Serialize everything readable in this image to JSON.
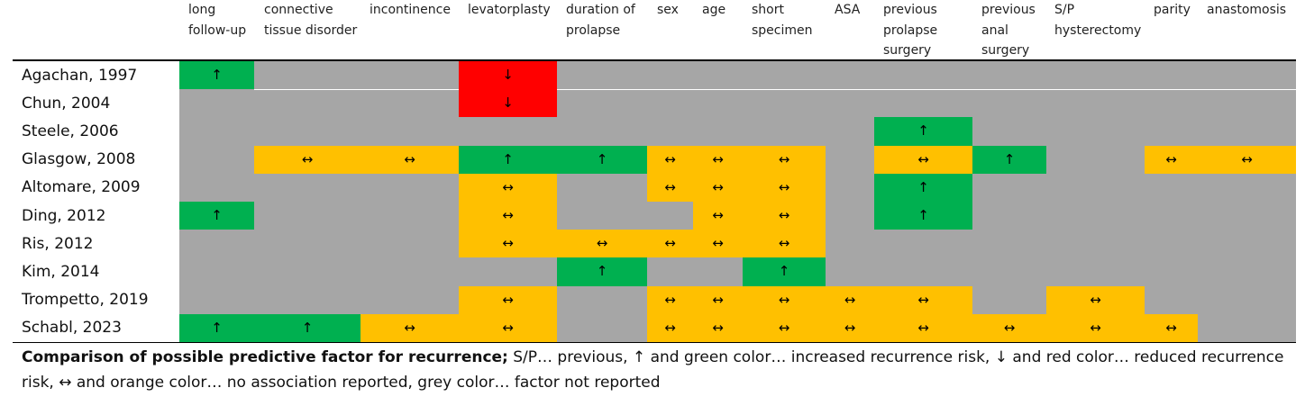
{
  "colors": {
    "increased": "#00b050",
    "reduced": "#ff0000",
    "no_association": "#ffc000",
    "not_reported": "#a6a6a6"
  },
  "symbols": {
    "up": "↑",
    "down": "↓",
    "both": "↔",
    "none": ""
  },
  "columns": [
    "long\nfollow-up",
    "connective\ntissue disorder",
    "incontinence",
    "levatorplasty",
    "duration of\nprolapse",
    "sex",
    "age",
    "short\nspecimen",
    "ASA",
    "previous\nprolapse\nsurgery",
    "previous\nanal\nsurgery",
    "S/P\nhysterectomy",
    "parity",
    "anastomosis"
  ],
  "rows": [
    {
      "study": "Agachan, 1997",
      "cells": [
        "up",
        "none",
        "none",
        "down",
        "none",
        "none",
        "none",
        "none",
        "none",
        "none",
        "none",
        "none",
        "none",
        "none"
      ]
    },
    {
      "study": "Chun, 2004",
      "cells": [
        "none",
        "none",
        "none",
        "down",
        "none",
        "none",
        "none",
        "none",
        "none",
        "none",
        "none",
        "none",
        "none",
        "none"
      ]
    },
    {
      "study": "Steele, 2006",
      "cells": [
        "none",
        "none",
        "none",
        "none",
        "none",
        "none",
        "none",
        "none",
        "none",
        "up",
        "none",
        "none",
        "none",
        "none"
      ]
    },
    {
      "study": "Glasgow, 2008",
      "cells": [
        "none",
        "both",
        "both",
        "up",
        "up",
        "both",
        "both",
        "both",
        "none",
        "both",
        "up",
        "none",
        "both",
        "both"
      ]
    },
    {
      "study": "Altomare, 2009",
      "cells": [
        "none",
        "none",
        "none",
        "both",
        "none",
        "both",
        "both",
        "both",
        "none",
        "up",
        "none",
        "none",
        "none",
        "none"
      ]
    },
    {
      "study": "Ding, 2012",
      "cells": [
        "up",
        "none",
        "none",
        "both",
        "none",
        "none",
        "both",
        "both",
        "none",
        "up",
        "none",
        "none",
        "none",
        "none"
      ]
    },
    {
      "study": "Ris, 2012",
      "cells": [
        "none",
        "none",
        "none",
        "both",
        "both",
        "both",
        "both",
        "both",
        "none",
        "none",
        "none",
        "none",
        "none",
        "none"
      ]
    },
    {
      "study": "Kim, 2014",
      "cells": [
        "none",
        "none",
        "none",
        "none",
        "up",
        "none",
        "none",
        "up",
        "none",
        "none",
        "none",
        "none",
        "none",
        "none"
      ]
    },
    {
      "study": "Trompetto, 2019",
      "cells": [
        "none",
        "none",
        "none",
        "both",
        "none",
        "both",
        "both",
        "both",
        "both",
        "both",
        "none",
        "both",
        "none",
        "none"
      ]
    },
    {
      "study": "Schabl, 2023",
      "cells": [
        "up",
        "up",
        "both",
        "both",
        "none",
        "both",
        "both",
        "both",
        "both",
        "both",
        "both",
        "both",
        "both",
        "none"
      ]
    }
  ],
  "caption": {
    "bold": "Comparison of possible predictive factor for recurrence;",
    "rest": " S/P… previous, ↑ and green color… increased recurrence risk, ↓ and red color… reduced recurrence risk, ↔ and orange color… no association reported, grey color… factor not reported"
  }
}
